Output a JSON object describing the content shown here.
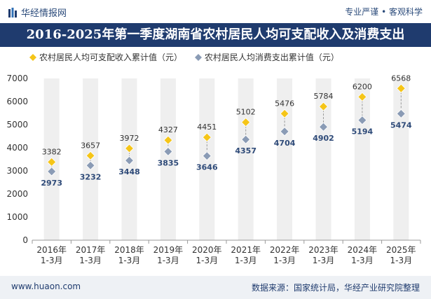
{
  "header": {
    "brand": "华经情报网",
    "slogan": "专业严谨 • 客观科学"
  },
  "title": "2016-2025年第一季度湖南省农村居民人均可支配收入及消费支出",
  "footer": {
    "website": "www.huaon.com",
    "source": "数据来源：国家统计局，华经产业研究院整理"
  },
  "colors": {
    "income": "#f5c518",
    "spending": "#8a9bb5",
    "band": "#efefef",
    "title_bg": "#1f3b6e"
  },
  "chart_data": {
    "type": "scatter",
    "title": "2016-2025年第一季度湖南省农村居民人均可支配收入及消费支出",
    "categories": [
      "2016年\n1-3月",
      "2017年\n1-3月",
      "2018年\n1-3月",
      "2019年\n1-3月",
      "2020年\n1-3月",
      "2021年\n1-3月",
      "2022年\n1-3月",
      "2023年\n1-3月",
      "2024年\n1-3月",
      "2025年\n1-3月"
    ],
    "series": [
      {
        "name": "农村居民人均可支配收入累计值（元）",
        "values": [
          3382,
          3657,
          3972,
          4327,
          4451,
          5102,
          5476,
          5784,
          6200,
          6568
        ]
      },
      {
        "name": "农村居民人均消费支出累计值（元）",
        "values": [
          2973,
          3232,
          3448,
          3835,
          3646,
          4357,
          4704,
          4902,
          5194,
          5474
        ]
      }
    ],
    "ylim": [
      0,
      7000
    ],
    "yticks": [
      0,
      1000,
      2000,
      3000,
      4000,
      5000,
      6000,
      7000
    ],
    "legend_position": "top-left"
  }
}
